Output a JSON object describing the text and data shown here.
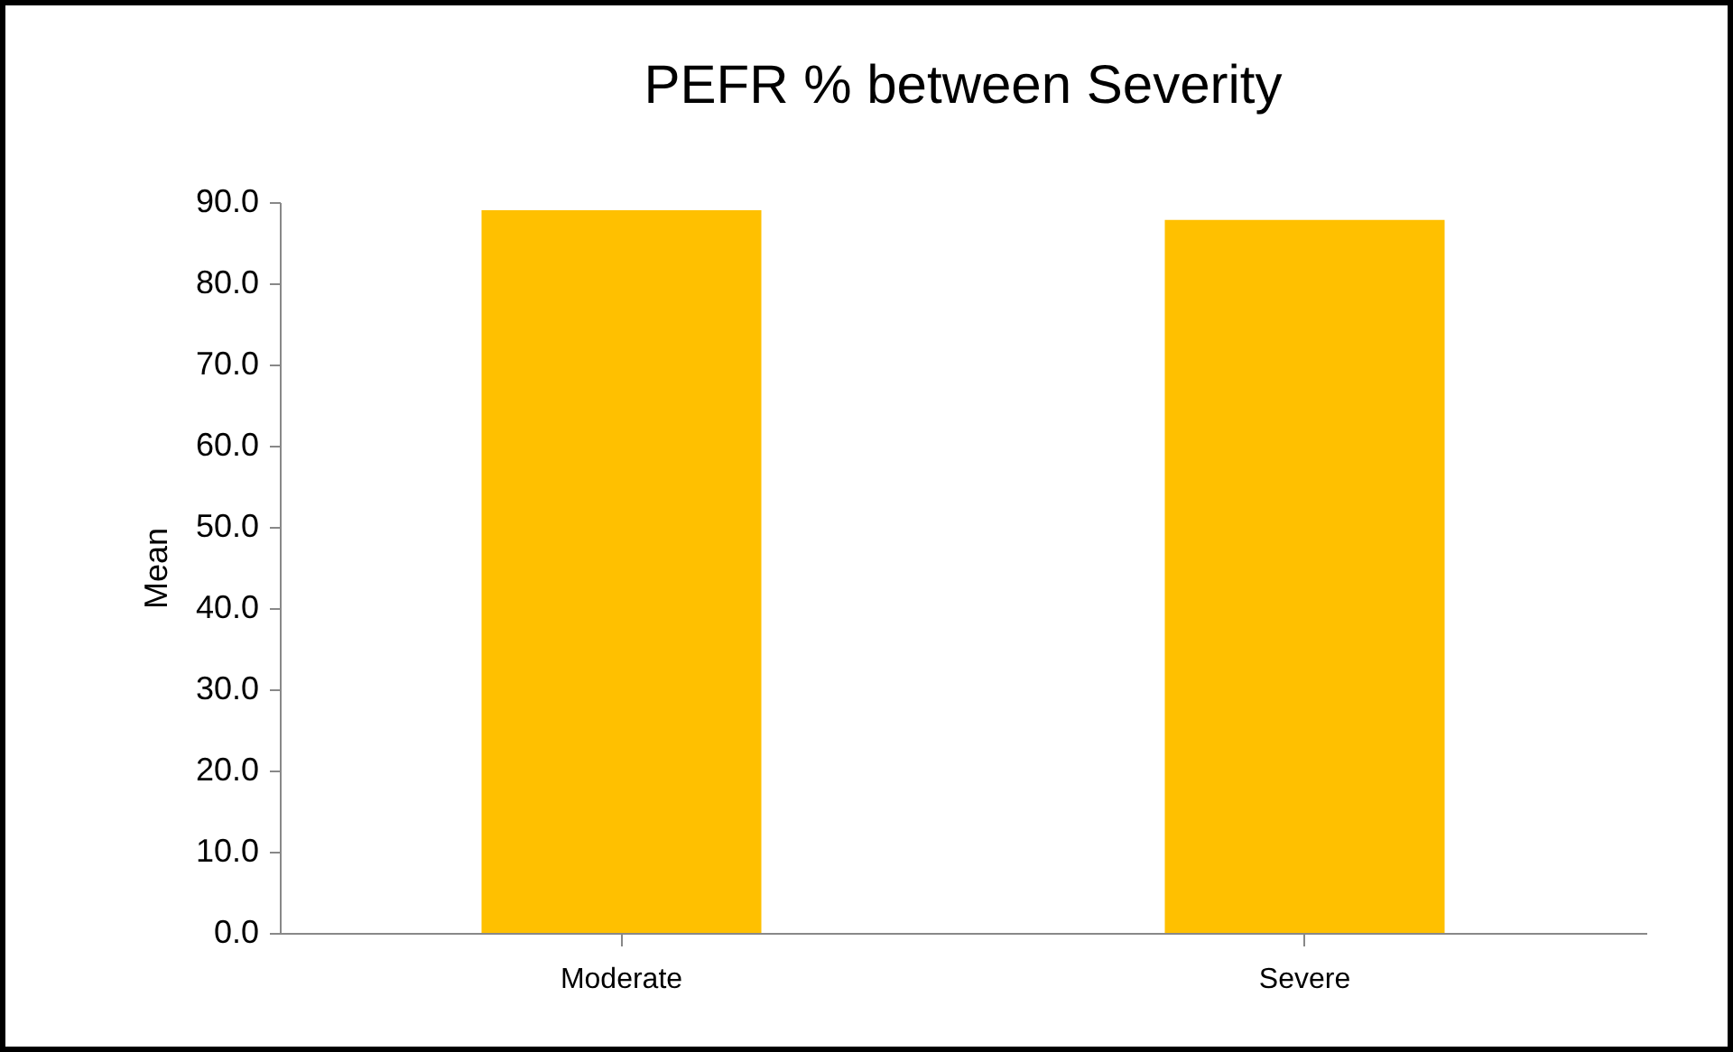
{
  "chart_data": {
    "type": "bar",
    "title": "PEFR % between Severity",
    "ylabel": "Mean",
    "categories": [
      "Moderate",
      "Severe"
    ],
    "values": [
      89.0,
      87.8
    ],
    "color": "#ffc000",
    "ylim": [
      0,
      90
    ],
    "yticks": [
      {
        "value": 0,
        "label": "0.0"
      },
      {
        "value": 10,
        "label": "10.0"
      },
      {
        "value": 20,
        "label": "20.0"
      },
      {
        "value": 30,
        "label": "30.0"
      },
      {
        "value": 40,
        "label": "40.0"
      },
      {
        "value": 50,
        "label": "50.0"
      },
      {
        "value": 60,
        "label": "60.0"
      },
      {
        "value": 70,
        "label": "70.0"
      },
      {
        "value": 80,
        "label": "80.0"
      },
      {
        "value": 90,
        "label": "90.0"
      }
    ],
    "grid": false
  }
}
